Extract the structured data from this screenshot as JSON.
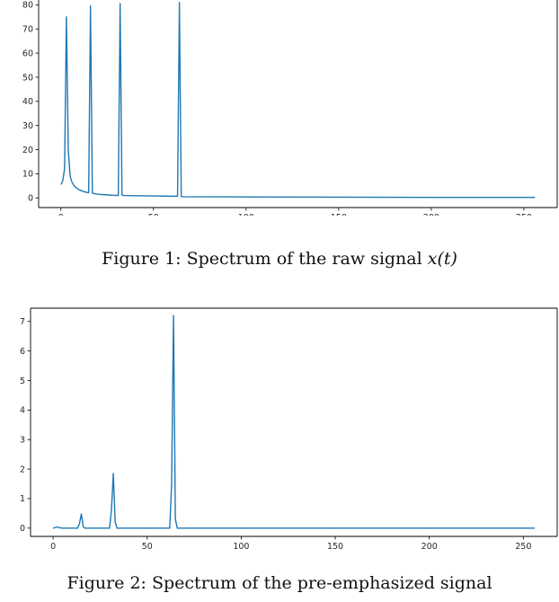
{
  "captions": {
    "fig1_prefix": "Figure 1: Spectrum of the raw signal ",
    "fig1_math": "x(t)",
    "fig2": "Figure 2: Spectrum of the pre-emphasized signal"
  },
  "chart_data": [
    {
      "type": "line",
      "color": "#1f77b4",
      "xlim": [
        -12,
        268
      ],
      "ylim": [
        -4,
        82
      ],
      "xticks": [
        0,
        50,
        100,
        150,
        200,
        250
      ],
      "yticks": [
        0,
        10,
        20,
        30,
        40,
        50,
        60,
        70,
        80
      ],
      "series": [
        {
          "x": [
            0,
            1,
            2,
            3,
            4,
            5,
            6,
            7,
            8,
            9,
            10,
            11,
            12,
            13,
            14,
            15,
            16,
            17,
            18,
            19,
            20,
            24,
            28,
            31,
            32,
            33,
            34,
            40,
            50,
            60,
            63,
            64,
            65,
            66,
            100,
            150,
            200,
            256
          ],
          "y": [
            5.5,
            7,
            12,
            75,
            20,
            9,
            6.5,
            5.2,
            4.4,
            3.8,
            3.3,
            3,
            2.7,
            2.5,
            2.3,
            2.1,
            79.5,
            2,
            1.8,
            1.6,
            1.5,
            1.3,
            1.1,
            1,
            80.5,
            1.2,
            1,
            0.9,
            0.8,
            0.7,
            0.7,
            81,
            0.6,
            0.5,
            0.4,
            0.3,
            0.2,
            0.2
          ]
        }
      ]
    },
    {
      "type": "line",
      "color": "#1f77b4",
      "xlim": [
        -12,
        268
      ],
      "ylim": [
        -0.28,
        7.45
      ],
      "xticks": [
        0,
        50,
        100,
        150,
        200,
        250
      ],
      "yticks": [
        0,
        1,
        2,
        3,
        4,
        5,
        6,
        7
      ],
      "series": [
        {
          "x": [
            0,
            1,
            2,
            3,
            4,
            5,
            6,
            7,
            13,
            14,
            15,
            16,
            17,
            18,
            30,
            31,
            32,
            33,
            34,
            62,
            63,
            64,
            65,
            66,
            100,
            150,
            200,
            256
          ],
          "y": [
            0,
            0.02,
            0.04,
            0.02,
            0.01,
            0,
            0,
            0,
            0,
            0.15,
            0.48,
            0.05,
            0,
            0,
            0,
            0.6,
            1.85,
            0.2,
            0,
            0,
            1.5,
            7.2,
            0.3,
            0,
            0,
            0,
            0,
            0
          ]
        }
      ]
    }
  ]
}
